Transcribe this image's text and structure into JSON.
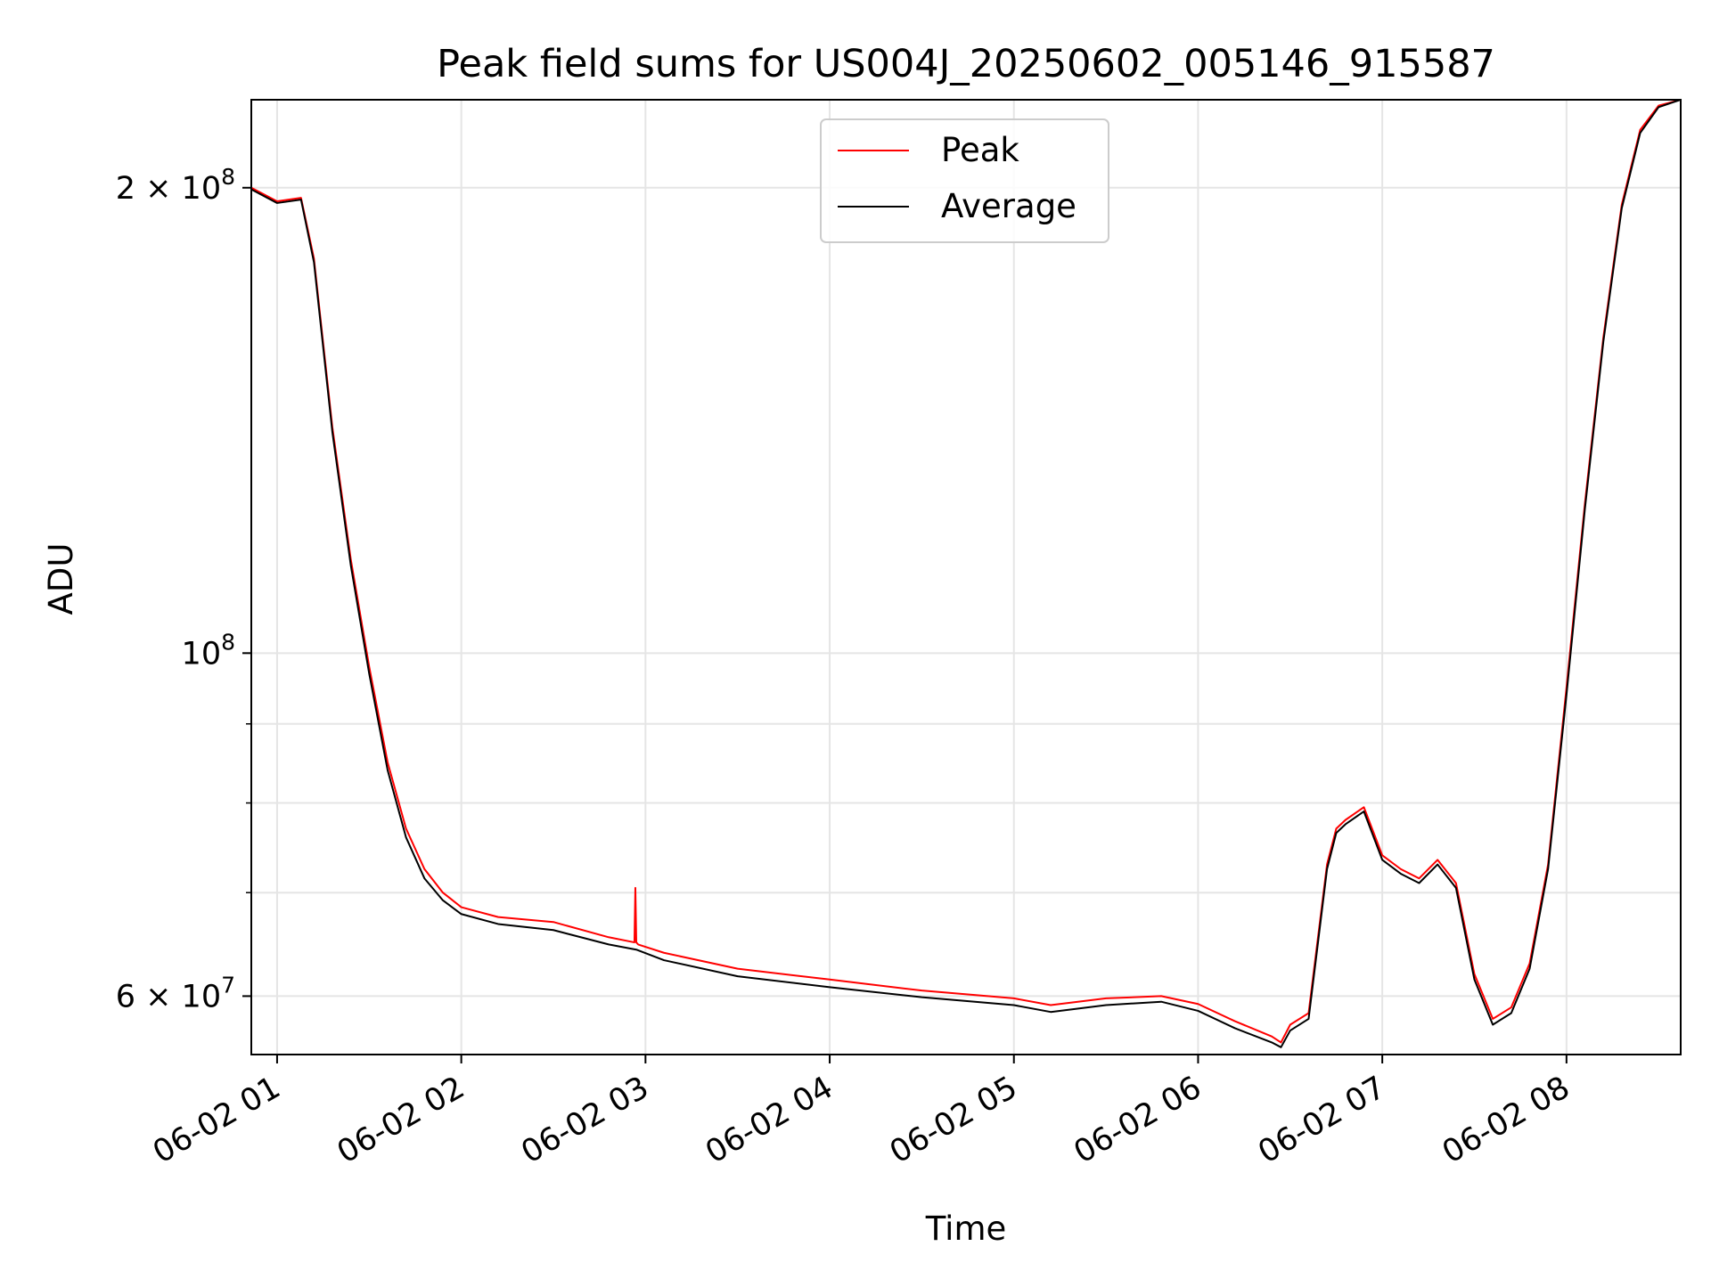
{
  "chart_data": {
    "type": "line",
    "title": "Peak field sums for US004J_20250602_005146_915587",
    "xlabel": "Time",
    "ylabel": "ADU",
    "x_unit": "hours",
    "xlim": [
      0.86,
      8.62
    ],
    "ylim": [
      55000000.0,
      228000000.0
    ],
    "yscale": "log",
    "grid": true,
    "legend_position": "upper center",
    "x_ticks": [
      {
        "value": 1,
        "label": "06-02 01"
      },
      {
        "value": 2,
        "label": "06-02 02"
      },
      {
        "value": 3,
        "label": "06-02 03"
      },
      {
        "value": 4,
        "label": "06-02 04"
      },
      {
        "value": 5,
        "label": "06-02 05"
      },
      {
        "value": 6,
        "label": "06-02 06"
      },
      {
        "value": 7,
        "label": "06-02 07"
      },
      {
        "value": 8,
        "label": "06-02 08"
      }
    ],
    "y_major_ticks": [
      {
        "value": 60000000,
        "label_base": "6 × 10",
        "label_exp": "7"
      },
      {
        "value": 100000000,
        "label_base": "10",
        "label_exp": "8"
      },
      {
        "value": 200000000,
        "label_base": "2 × 10",
        "label_exp": "8"
      }
    ],
    "y_minor_ticks": [
      70000000,
      80000000,
      90000000
    ],
    "series": [
      {
        "name": "Peak",
        "color": "#ff0000",
        "x": [
          0.86,
          1.0,
          1.13,
          1.2,
          1.3,
          1.4,
          1.5,
          1.6,
          1.7,
          1.8,
          1.9,
          2.0,
          2.2,
          2.5,
          2.8,
          2.94,
          2.945,
          2.95,
          2.96,
          3.1,
          3.5,
          4.0,
          4.5,
          5.0,
          5.2,
          5.5,
          5.8,
          6.0,
          6.2,
          6.4,
          6.45,
          6.5,
          6.6,
          6.7,
          6.75,
          6.8,
          6.9,
          7.0,
          7.1,
          7.2,
          7.3,
          7.4,
          7.5,
          7.6,
          7.7,
          7.8,
          7.9,
          8.0,
          8.1,
          8.2,
          8.3,
          8.4,
          8.5,
          8.62
        ],
        "y": [
          200000000,
          196000000,
          197000000,
          180000000,
          140000000,
          115000000,
          98000000,
          85000000,
          77000000,
          72500000,
          70000000,
          68500000,
          67500000,
          67000000,
          65500000,
          65000000,
          70500000,
          65000000,
          64800000,
          64000000,
          62500000,
          61500000,
          60500000,
          59800000,
          59200000,
          59800000,
          60000000,
          59300000,
          57800000,
          56500000,
          56000000,
          57500000,
          58500000,
          73000000,
          77000000,
          78000000,
          79500000,
          74000000,
          72500000,
          71500000,
          73500000,
          71000000,
          62000000,
          58000000,
          59000000,
          63000000,
          73000000,
          95000000,
          125000000,
          160000000,
          195000000,
          218000000,
          226000000,
          228000000
        ]
      },
      {
        "name": "Average",
        "color": "#000000",
        "x": [
          0.86,
          1.0,
          1.13,
          1.2,
          1.3,
          1.4,
          1.5,
          1.6,
          1.7,
          1.8,
          1.9,
          2.0,
          2.2,
          2.5,
          2.8,
          2.95,
          3.1,
          3.5,
          4.0,
          4.5,
          5.0,
          5.2,
          5.5,
          5.8,
          6.0,
          6.2,
          6.4,
          6.45,
          6.5,
          6.6,
          6.7,
          6.75,
          6.8,
          6.9,
          7.0,
          7.1,
          7.2,
          7.3,
          7.4,
          7.5,
          7.6,
          7.7,
          7.8,
          7.9,
          8.0,
          8.1,
          8.2,
          8.3,
          8.4,
          8.5,
          8.62
        ],
        "y": [
          199500000,
          195500000,
          196500000,
          179000000,
          139000000,
          114000000,
          97000000,
          84000000,
          76000000,
          71500000,
          69200000,
          67800000,
          66800000,
          66200000,
          64800000,
          64300000,
          63300000,
          61800000,
          60800000,
          59900000,
          59200000,
          58600000,
          59200000,
          59500000,
          58700000,
          57200000,
          56000000,
          55600000,
          57000000,
          58000000,
          72500000,
          76500000,
          77500000,
          79000000,
          73500000,
          72000000,
          71000000,
          73000000,
          70500000,
          61500000,
          57500000,
          58500000,
          62500000,
          72500000,
          94000000,
          124000000,
          159000000,
          194000000,
          217000000,
          225500000,
          228000000
        ]
      }
    ]
  }
}
